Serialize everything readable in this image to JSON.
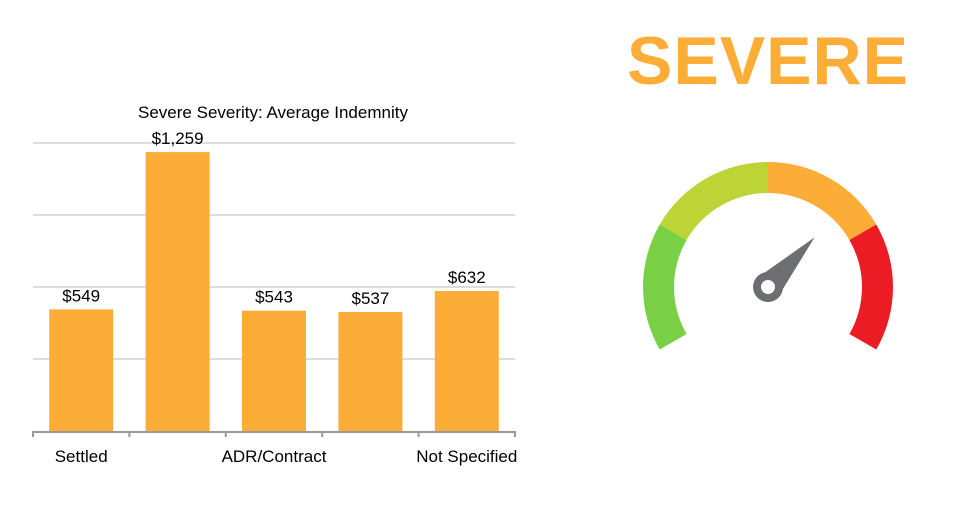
{
  "severity_label": "SEVERE",
  "colors": {
    "bar": "#fbad37",
    "grid": "#dddddd",
    "axis": "#999999",
    "severity_text": "#fbad37",
    "gauge_segments": [
      "#79d044",
      "#bdd437",
      "#fbad37",
      "#ec1c24"
    ],
    "needle": "#6d6e71"
  },
  "gauge": {
    "segments": 4,
    "needle_position_fraction": 0.68
  },
  "chart_data": {
    "type": "bar",
    "title": "Severe Severity: Average Indemnity",
    "categories": [
      "Settled",
      "",
      "ADR/Contract",
      "",
      "Not Specified"
    ],
    "values": [
      549,
      1259,
      543,
      537,
      632
    ],
    "data_labels": [
      "$549",
      "$1,259",
      "$543",
      "$537",
      "$632"
    ],
    "xlabel": "",
    "ylabel": "",
    "ylim": [
      0,
      1300
    ],
    "grid_step": 325,
    "grid": true
  }
}
